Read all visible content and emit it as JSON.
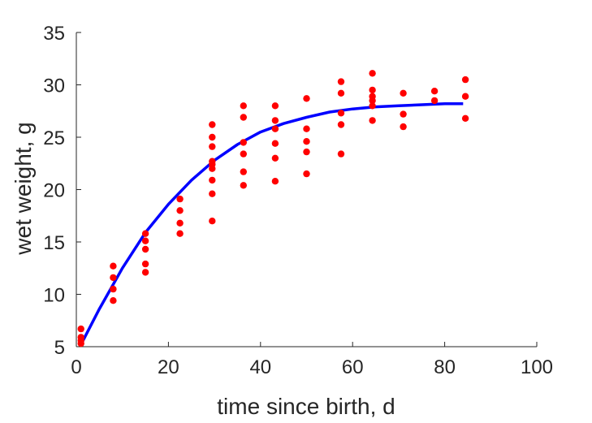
{
  "chart_data": {
    "type": "scatter",
    "title": "",
    "xlabel": "time since birth, d",
    "ylabel": "wet weight, g",
    "xlim": [
      0,
      100
    ],
    "ylim": [
      5,
      35
    ],
    "xticks": [
      0,
      20,
      40,
      60,
      80,
      100
    ],
    "yticks": [
      5,
      10,
      15,
      20,
      25,
      30,
      35
    ],
    "grid": false,
    "legend": "none",
    "series": [
      {
        "kind": "scatter",
        "color": "#ff0000",
        "points": [
          [
            1,
            6.7
          ],
          [
            1,
            5.9
          ],
          [
            1,
            5.6
          ],
          [
            1,
            5.3
          ],
          [
            8,
            12.7
          ],
          [
            8,
            11.6
          ],
          [
            8,
            10.5
          ],
          [
            8,
            9.4
          ],
          [
            15,
            15.8
          ],
          [
            15,
            15.1
          ],
          [
            15,
            14.3
          ],
          [
            15,
            12.9
          ],
          [
            15,
            12.1
          ],
          [
            22.5,
            19.1
          ],
          [
            22.5,
            18.0
          ],
          [
            22.5,
            16.8
          ],
          [
            22.5,
            15.8
          ],
          [
            29.5,
            26.2
          ],
          [
            29.5,
            25.0
          ],
          [
            29.5,
            24.1
          ],
          [
            29.5,
            22.7
          ],
          [
            29.5,
            22.4
          ],
          [
            29.5,
            22.0
          ],
          [
            29.5,
            20.9
          ],
          [
            29.5,
            19.6
          ],
          [
            29.5,
            17.0
          ],
          [
            36.3,
            28.0
          ],
          [
            36.3,
            26.9
          ],
          [
            36.3,
            24.5
          ],
          [
            36.3,
            23.4
          ],
          [
            36.3,
            21.7
          ],
          [
            36.3,
            20.4
          ],
          [
            43.2,
            28.0
          ],
          [
            43.2,
            26.6
          ],
          [
            43.2,
            25.8
          ],
          [
            43.2,
            24.4
          ],
          [
            43.2,
            23.0
          ],
          [
            43.2,
            20.8
          ],
          [
            50,
            28.7
          ],
          [
            50,
            25.8
          ],
          [
            50,
            24.6
          ],
          [
            50,
            23.6
          ],
          [
            50,
            21.5
          ],
          [
            57.5,
            30.3
          ],
          [
            57.5,
            29.2
          ],
          [
            57.5,
            27.3
          ],
          [
            57.5,
            26.2
          ],
          [
            57.5,
            23.4
          ],
          [
            64.3,
            31.1
          ],
          [
            64.3,
            29.5
          ],
          [
            64.3,
            28.9
          ],
          [
            64.3,
            28.5
          ],
          [
            64.3,
            28.0
          ],
          [
            64.3,
            26.6
          ],
          [
            71,
            29.2
          ],
          [
            71,
            27.2
          ],
          [
            71,
            26.0
          ],
          [
            77.8,
            29.4
          ],
          [
            77.8,
            28.5
          ],
          [
            84.5,
            30.5
          ],
          [
            84.5,
            28.9
          ],
          [
            84.5,
            26.8
          ]
        ]
      },
      {
        "kind": "line",
        "color": "#0000ff",
        "points": [
          [
            1,
            5.2
          ],
          [
            5,
            8.6
          ],
          [
            10,
            12.5
          ],
          [
            15,
            15.9
          ],
          [
            20,
            18.6
          ],
          [
            25,
            20.9
          ],
          [
            30,
            22.8
          ],
          [
            35,
            24.3
          ],
          [
            40,
            25.5
          ],
          [
            45,
            26.3
          ],
          [
            50,
            26.9
          ],
          [
            55,
            27.4
          ],
          [
            60,
            27.7
          ],
          [
            65,
            27.9
          ],
          [
            70,
            28.0
          ],
          [
            75,
            28.1
          ],
          [
            80,
            28.2
          ],
          [
            84,
            28.2
          ]
        ]
      }
    ]
  }
}
